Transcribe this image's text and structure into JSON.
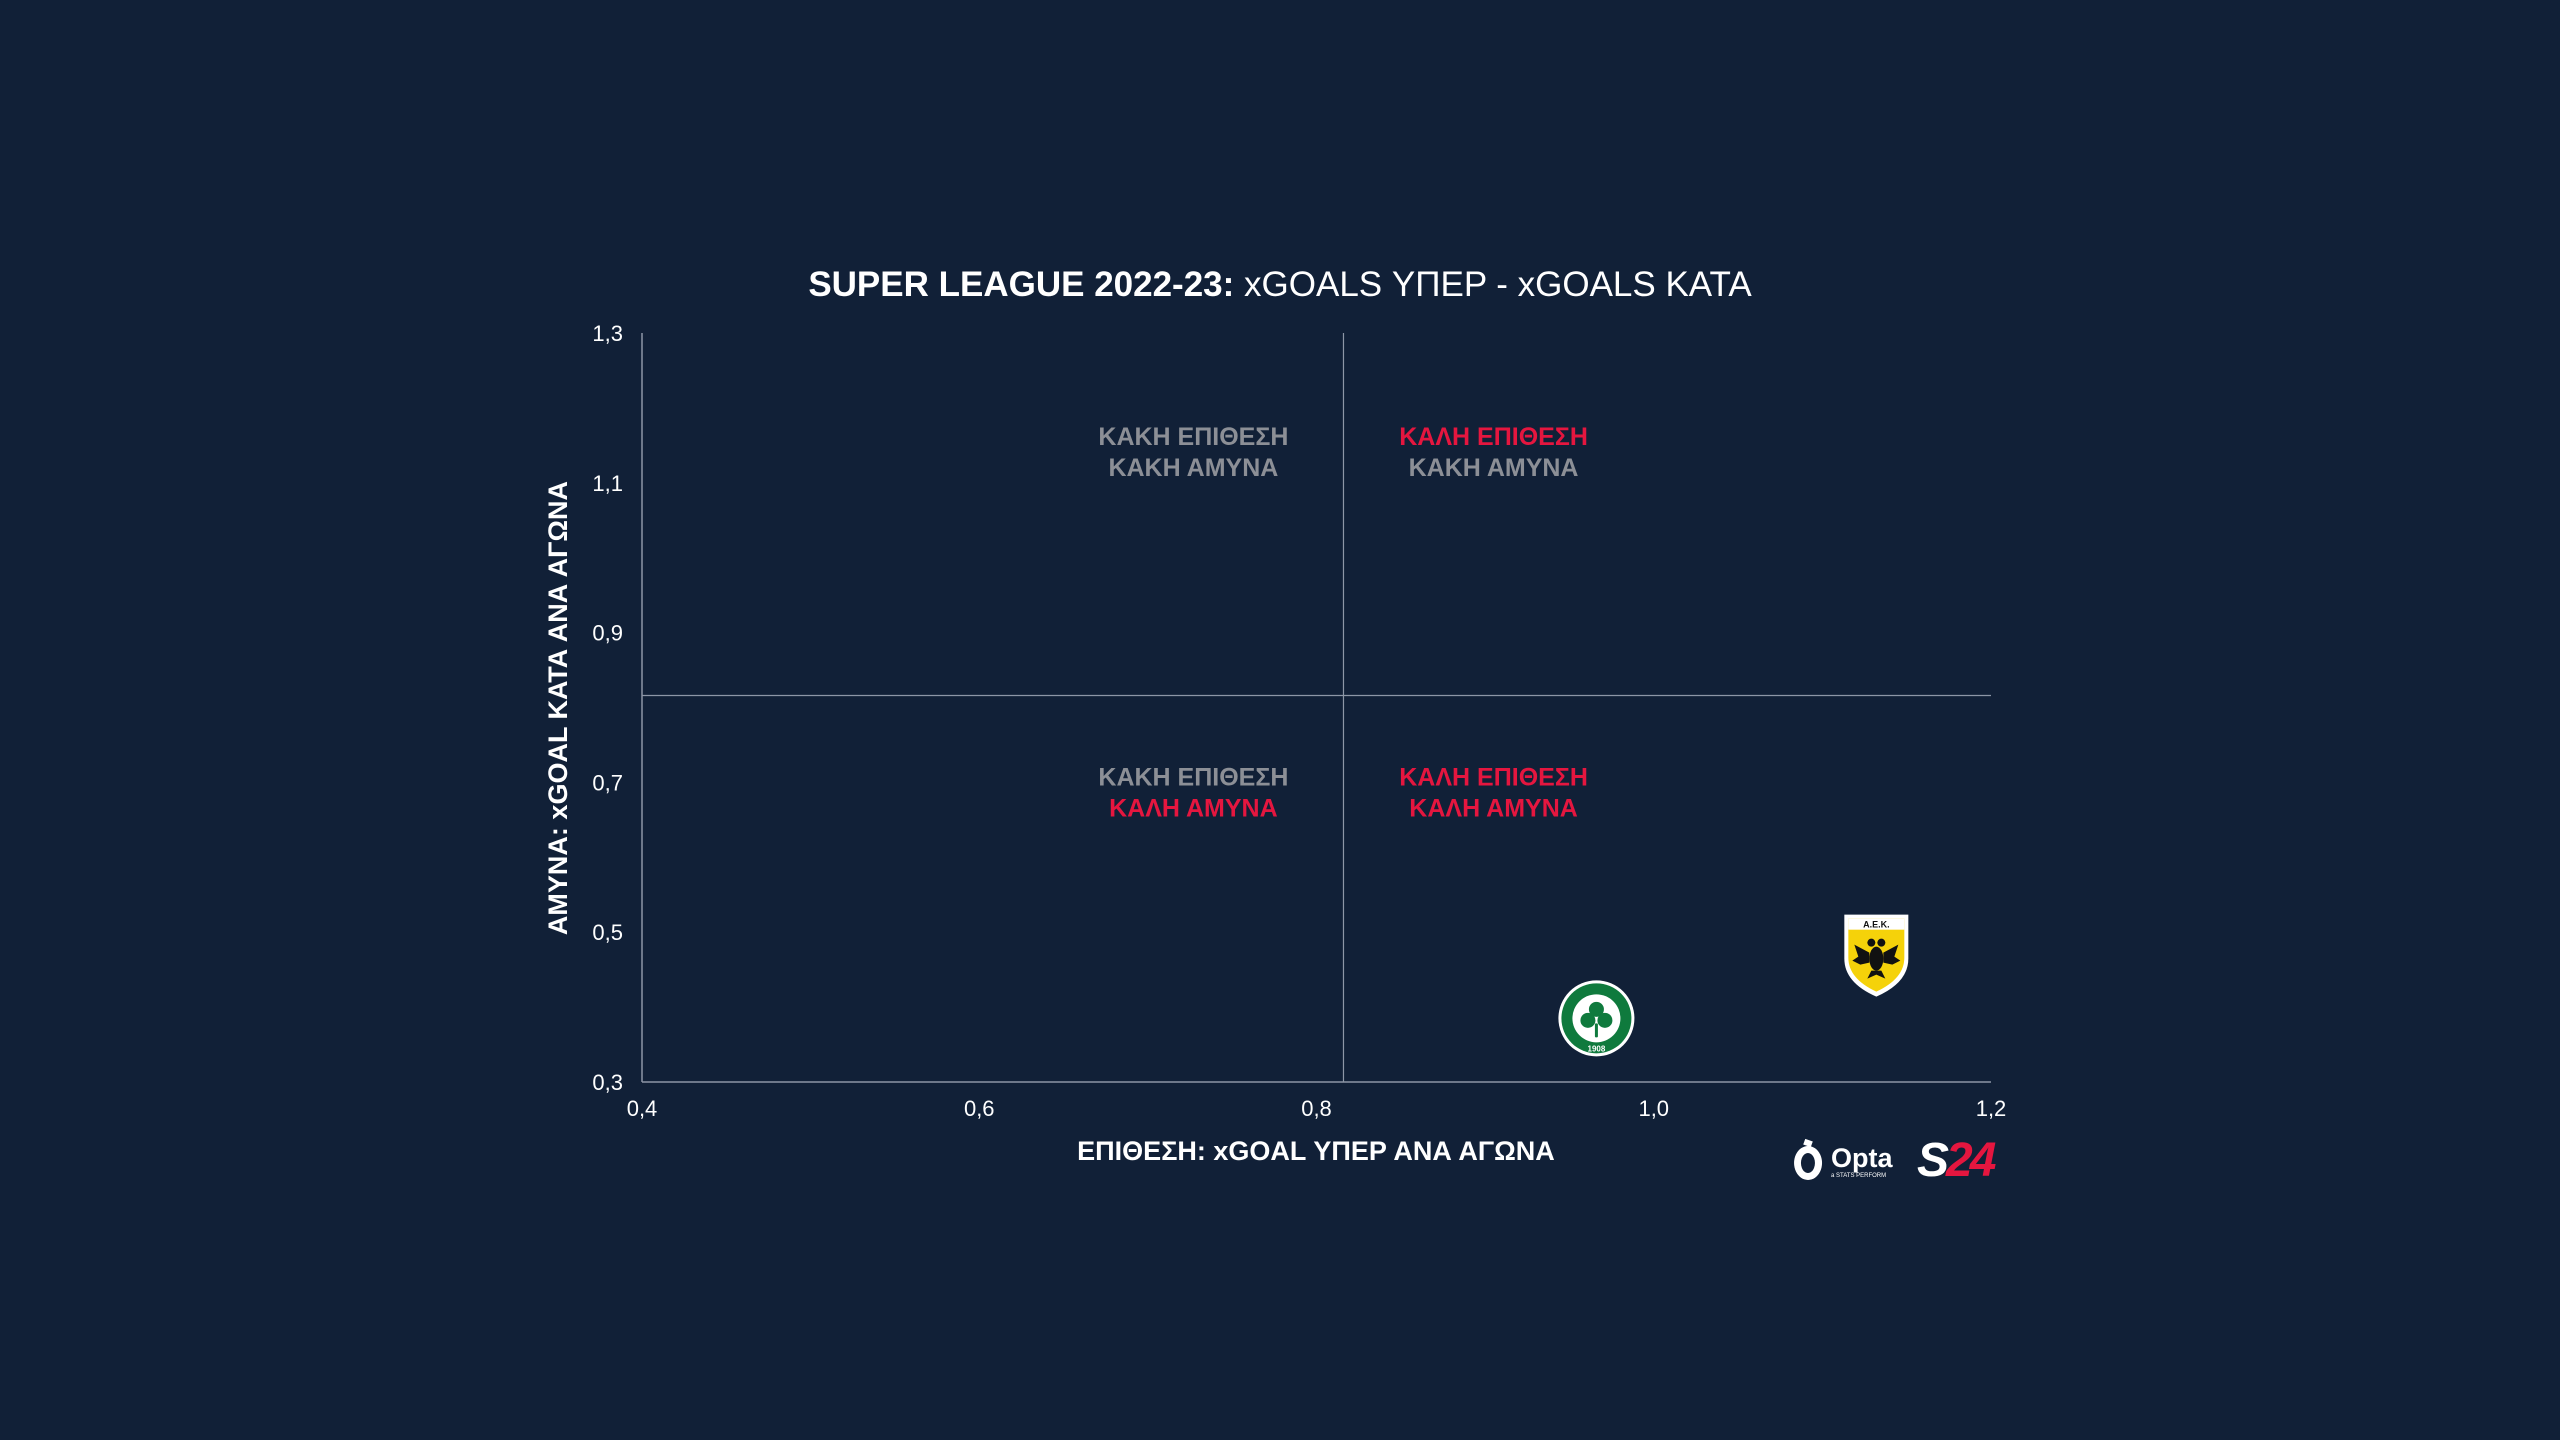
{
  "colors": {
    "background": "#112037",
    "text": "#ffffff",
    "muted": "#8c8f96",
    "accent": "#e5163f",
    "axis": "#8d96a6",
    "panathinaikos_green": "#0f7a3d",
    "aek_yellow": "#f5d20a"
  },
  "chart_data": {
    "type": "scatter",
    "title_bold": "SUPER LEAGUE 2022-23:",
    "title_rest": " xGOALS ΥΠΕΡ - xGOALS ΚΑΤΑ",
    "xlabel": "ΕΠΙΘΕΣΗ: xGOAL ΥΠΕΡ ΑΝΑ ΑΓΩΝΑ",
    "ylabel": "ΑΜΥΝΑ: xGOAL ΚΑΤΑ ΑΝΑ ΑΓΩΝΑ",
    "xlim": [
      0.4,
      1.2
    ],
    "ylim": [
      0.3,
      1.3
    ],
    "xticks": [
      0.4,
      0.6,
      0.8,
      1.0,
      1.2
    ],
    "xtick_labels": [
      "0,4",
      "0,6",
      "0,8",
      "1,0",
      "1,2"
    ],
    "yticks": [
      0.3,
      0.5,
      0.7,
      0.9,
      1.1,
      1.3
    ],
    "ytick_labels": [
      "0,3",
      "0,5",
      "0,7",
      "0,9",
      "1,1",
      "1,3"
    ],
    "divider_x": 0.816,
    "divider_y": 0.816,
    "quadrants": [
      {
        "name": "top-left",
        "line1": "ΚΑΚΗ ΕΠΙΘΕΣΗ",
        "line1_style": "muted",
        "line2": "ΚΑΚΗ ΑΜΥΝΑ",
        "line2_style": "muted",
        "x": 0.727,
        "y": 1.14
      },
      {
        "name": "top-right",
        "line1": "ΚΑΛΗ ΕΠΙΘΕΣΗ",
        "line1_style": "accent",
        "line2": "ΚΑΚΗ ΑΜΥΝΑ",
        "line2_style": "muted",
        "x": 0.905,
        "y": 1.14
      },
      {
        "name": "bottom-left",
        "line1": "ΚΑΚΗ ΕΠΙΘΕΣΗ",
        "line1_style": "muted",
        "line2": "ΚΑΛΗ ΑΜΥΝΑ",
        "line2_style": "accent",
        "x": 0.727,
        "y": 0.685
      },
      {
        "name": "bottom-right",
        "line1": "ΚΑΛΗ ΕΠΙΘΕΣΗ",
        "line1_style": "accent",
        "line2": "ΚΑΛΗ ΑΜΥΝΑ",
        "line2_style": "accent",
        "x": 0.905,
        "y": 0.685
      }
    ],
    "points": [
      {
        "team": "panathinaikos",
        "logo": "panathinaikos-logo",
        "crest_text": "1908",
        "x": 0.966,
        "y": 0.385
      },
      {
        "team": "aek",
        "logo": "aek-logo",
        "crest_text": "Α.Ε.Κ.",
        "x": 1.132,
        "y": 0.47
      }
    ]
  },
  "branding": {
    "opta": "Opta",
    "opta_sub": "a STATS PERFORM",
    "s24": "S24"
  }
}
